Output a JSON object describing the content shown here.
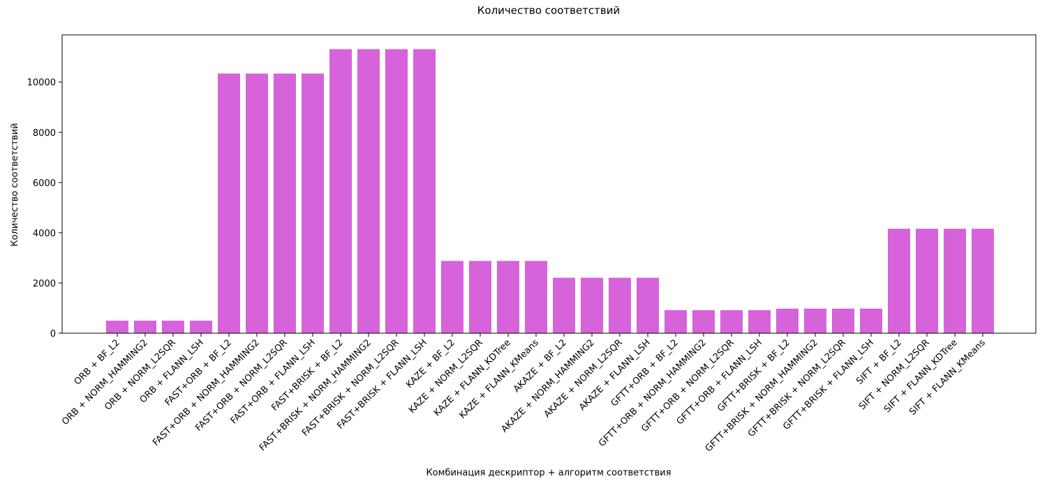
{
  "chart_data": {
    "type": "bar",
    "title": "Количество соответствий",
    "xlabel": "Комбинация дескриптор + алгоритм соответствия",
    "ylabel": "Количество соответствий",
    "ylim": [
      0,
      11880
    ],
    "yticks": [
      0,
      2000,
      4000,
      6000,
      8000,
      10000
    ],
    "grid": false,
    "color": "#d663d9",
    "categories": [
      "ORB + BF_L2",
      "ORB + NORM_HAMMING2",
      "ORB + NORM_L2SQR",
      "ORB + FLANN_LSH",
      "FAST+ORB + BF_L2",
      "FAST+ORB + NORM_HAMMING2",
      "FAST+ORB + NORM_L2SQR",
      "FAST+ORB + FLANN_LSH",
      "FAST+BRISK + BF_L2",
      "FAST+BRISK + NORM_HAMMING2",
      "FAST+BRISK + NORM_L2SQR",
      "FAST+BRISK + FLANN_LSH",
      "KAZE + BF_L2",
      "KAZE + NORM_L2SQR",
      "KAZE + FLANN_KDTree",
      "KAZE + FLANN_KMeans",
      "AKAZE + BF_L2",
      "AKAZE + NORM_HAMMING2",
      "AKAZE + NORM_L2SQR",
      "AKAZE + FLANN_LSH",
      "GFTT+ORB + BF_L2",
      "GFTT+ORB + NORM_HAMMING2",
      "GFTT+ORB + NORM_L2SQR",
      "GFTT+ORB + FLANN_LSH",
      "GFTT+BRISK + BF_L2",
      "GFTT+BRISK + NORM_HAMMING2",
      "GFTT+BRISK + NORM_L2SQR",
      "GFTT+BRISK + FLANN_LSH",
      "SIFT + BF_L2",
      "SIFT + NORM_L2SQR",
      "SIFT + FLANN_KDTree",
      "SIFT + FLANN_KMeans"
    ],
    "values": [
      500,
      500,
      500,
      500,
      10340,
      10340,
      10340,
      10340,
      11310,
      11310,
      11310,
      11310,
      2880,
      2880,
      2880,
      2880,
      2210,
      2210,
      2210,
      2210,
      920,
      920,
      920,
      920,
      980,
      980,
      980,
      980,
      4160,
      4160,
      4160,
      4160
    ]
  }
}
